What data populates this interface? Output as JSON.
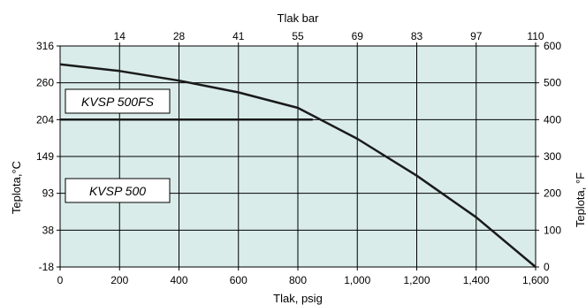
{
  "chart_data": {
    "type": "line",
    "title": "",
    "bottom_axis": {
      "label": "Tlak, psig",
      "range": [
        0,
        1600
      ],
      "ticks": [
        0,
        200,
        400,
        600,
        800,
        1000,
        1200,
        1400,
        1600
      ],
      "tick_labels": [
        "0",
        "200",
        "400",
        "600",
        "800",
        "1,000",
        "1,200",
        "1,400",
        "1,600"
      ]
    },
    "top_axis": {
      "label": "Tlak bar",
      "tick_labels": [
        "14",
        "28",
        "41",
        "55",
        "69",
        "83",
        "97",
        "110"
      ]
    },
    "left_axis": {
      "label": "Teplota,°C",
      "tick_labels": [
        "316",
        "260",
        "204",
        "149",
        "93",
        "38",
        "-18"
      ]
    },
    "right_axis": {
      "label": "Teplota, °F",
      "range": [
        0,
        600
      ],
      "ticks": [
        0,
        100,
        200,
        300,
        400,
        500,
        600
      ]
    },
    "grid": true,
    "plot_background": "#d9ece9",
    "line_color": "#1a1a1a",
    "series": [
      {
        "x": [
          0,
          200,
          400,
          600,
          800,
          1000,
          1200,
          1400,
          1600
        ],
        "y": [
          550,
          532,
          506,
          474,
          432,
          348,
          248,
          135,
          0
        ]
      },
      {
        "x": [
          0,
          850
        ],
        "y": [
          400,
          400
        ]
      }
    ],
    "annotations": [
      {
        "text": "KVSP 500FS"
      },
      {
        "text": "KVSP 500"
      }
    ]
  }
}
